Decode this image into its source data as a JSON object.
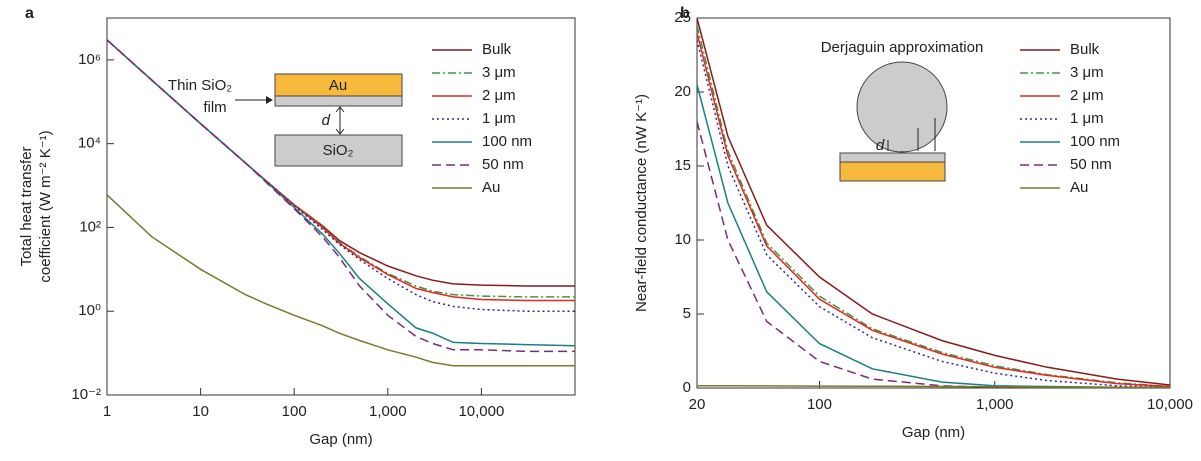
{
  "chart_data": [
    {
      "type": "line",
      "panel_label": "a",
      "xlabel": "Gap (nm)",
      "ylabel": [
        "Total heat transfer",
        "coefficient (W m⁻² K⁻¹)"
      ],
      "xlog": true,
      "ylog": true,
      "legend": "upper right",
      "xlim": [
        1,
        100000
      ],
      "ylim": [
        0.01,
        10000000
      ],
      "xticks": [
        1,
        10,
        100,
        {
          "value": 1000,
          "label": "1,000"
        },
        {
          "value": 10000,
          "label": "10,000"
        }
      ],
      "yticks": [
        {
          "value": 0.01,
          "label": "10⁻²"
        },
        {
          "value": 1,
          "label": "10⁰"
        },
        {
          "value": 100,
          "label": "10²"
        },
        {
          "value": 10000,
          "label": "10⁴"
        },
        {
          "value": 1000000,
          "label": "10⁶"
        }
      ],
      "inset": {
        "top_layer": "Au",
        "film_label": [
          "Thin SiO₂",
          "film"
        ],
        "gap_label": "d",
        "substrate": "SiO₂"
      },
      "x": [
        1,
        3,
        10,
        30,
        50,
        100,
        200,
        300,
        500,
        1000,
        2000,
        3000,
        5000,
        10000,
        30000,
        100000
      ],
      "series": [
        {
          "name": "Bulk",
          "color": "#8b1a1a",
          "dash": "solid",
          "values": [
            3000000,
            330000,
            30000,
            3500,
            1300,
            350,
            110,
            50,
            25,
            12,
            7,
            5.5,
            4.5,
            4.2,
            4.0,
            4.0
          ]
        },
        {
          "name": "3 μm",
          "color": "#3a9a3a",
          "dash": "dashdot",
          "values": [
            3000000,
            330000,
            30000,
            3500,
            1300,
            345,
            105,
            45,
            20,
            8,
            4,
            3,
            2.5,
            2.3,
            2.2,
            2.2
          ]
        },
        {
          "name": "2 μm",
          "color": "#e8251f",
          "dash": "solid",
          "values": [
            3000000,
            330000,
            30000,
            3500,
            1300,
            340,
            100,
            43,
            19,
            7.5,
            3.5,
            2.8,
            2.2,
            1.9,
            1.8,
            1.8
          ]
        },
        {
          "name": "1 μm",
          "color": "#2b2b8f",
          "dash": "dot",
          "values": [
            3000000,
            330000,
            30000,
            3500,
            1300,
            330,
            90,
            40,
            17,
            6,
            2.5,
            1.7,
            1.3,
            1.1,
            1.0,
            1.0
          ]
        },
        {
          "name": "100 nm",
          "color": "#1a8080",
          "dash": "solid",
          "values": [
            3000000,
            330000,
            30000,
            3500,
            1250,
            300,
            70,
            25,
            6,
            1.5,
            0.4,
            0.3,
            0.18,
            0.17,
            0.16,
            0.15
          ]
        },
        {
          "name": "50 nm",
          "color": "#7a2a7a",
          "dash": "dash",
          "values": [
            3000000,
            330000,
            30000,
            3500,
            1200,
            280,
            60,
            20,
            4,
            0.8,
            0.25,
            0.17,
            0.12,
            0.12,
            0.11,
            0.11
          ]
        },
        {
          "name": "Au",
          "color": "#7a7a2a",
          "dash": "solid",
          "values": [
            600,
            60,
            10,
            2.5,
            1.5,
            0.8,
            0.45,
            0.3,
            0.2,
            0.12,
            0.08,
            0.06,
            0.05,
            0.05,
            0.05,
            0.05
          ]
        }
      ]
    },
    {
      "type": "line",
      "panel_label": "b",
      "xlabel": "Gap (nm)",
      "ylabel": [
        "Near-field conductance (nW K⁻¹)"
      ],
      "xlog": true,
      "ylog": false,
      "legend": "upper right",
      "xlim": [
        20,
        10000
      ],
      "ylim": [
        0,
        25
      ],
      "xticks": [
        20,
        100,
        {
          "value": 1000,
          "label": "1,000"
        },
        {
          "value": 10000,
          "label": "10,000"
        }
      ],
      "yticks": [
        0,
        5,
        10,
        15,
        20,
        25
      ],
      "inset": {
        "title": "Derjaguin approximation",
        "gap_label": "d"
      },
      "x": [
        20,
        30,
        50,
        100,
        200,
        500,
        1000,
        2000,
        5000,
        10000
      ],
      "series": [
        {
          "name": "Bulk",
          "color": "#8b1a1a",
          "dash": "solid",
          "values": [
            25,
            17,
            11,
            7.5,
            5,
            3.2,
            2.2,
            1.4,
            0.6,
            0.2
          ]
        },
        {
          "name": "3 μm",
          "color": "#3a9a3a",
          "dash": "dashdot",
          "values": [
            24.5,
            16,
            9.8,
            6.2,
            4,
            2.4,
            1.5,
            0.9,
            0.35,
            0.1
          ]
        },
        {
          "name": "2 μm",
          "color": "#e8251f",
          "dash": "solid",
          "values": [
            24,
            15.7,
            9.6,
            6,
            3.9,
            2.3,
            1.4,
            0.85,
            0.3,
            0.1
          ]
        },
        {
          "name": "1 μm",
          "color": "#2b2b8f",
          "dash": "dot",
          "values": [
            23.5,
            15,
            9,
            5.5,
            3.4,
            1.8,
            1.0,
            0.5,
            0.15,
            0.05
          ]
        },
        {
          "name": "100 nm",
          "color": "#1a8080",
          "dash": "solid",
          "values": [
            20.5,
            12.5,
            6.5,
            3,
            1.3,
            0.4,
            0.15,
            0.1,
            0.05,
            0.05
          ]
        },
        {
          "name": "50 nm",
          "color": "#7a2a7a",
          "dash": "dash",
          "values": [
            18,
            10,
            4.5,
            1.8,
            0.6,
            0.15,
            0.05,
            0.03,
            0.03,
            0.03
          ]
        },
        {
          "name": "Au",
          "color": "#7a7a2a",
          "dash": "solid",
          "values": [
            0.15,
            0.15,
            0.14,
            0.13,
            0.12,
            0.1,
            0.08,
            0.06,
            0.05,
            0.05
          ]
        }
      ]
    }
  ]
}
